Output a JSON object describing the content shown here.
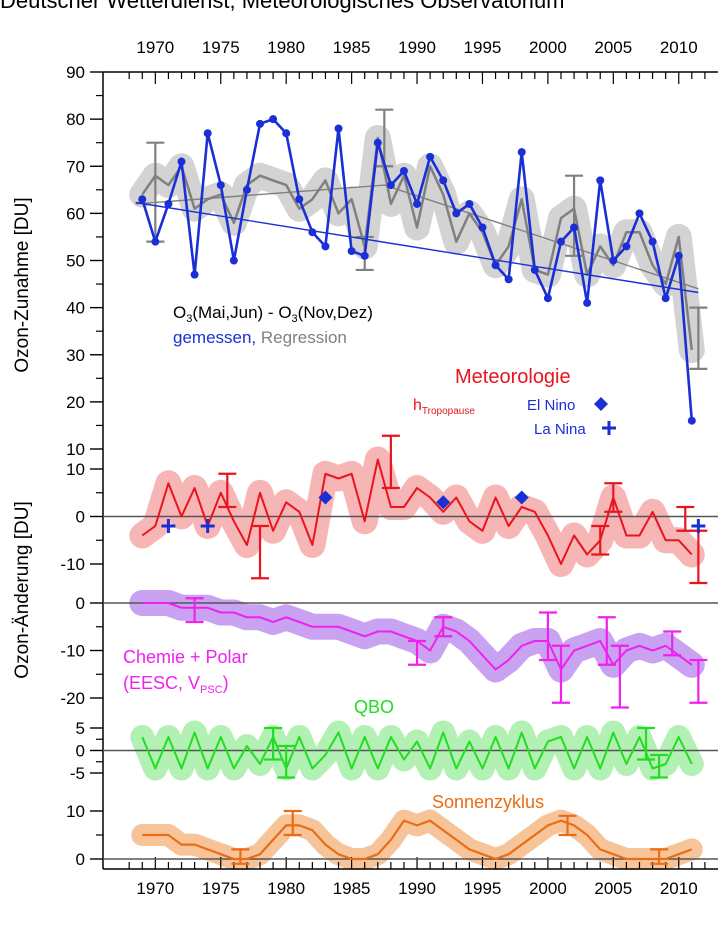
{
  "header_text": "Deutscher Wetterdienst, Meteorologisches Observatorium",
  "y_axis_label_top": "Ozon-Zunahme [DU]",
  "y_axis_label_bottom": "Ozon-Änderung [DU]",
  "colors": {
    "measured": "#1a2fd6",
    "regression": "#808080",
    "regression_band": "#d3d3d3",
    "meteorology": "#e8141e",
    "meteorology_band": "#f7b6b6",
    "chemistry": "#ee22ee",
    "chemistry_band": "#c9a3f2",
    "qbo": "#22dd22",
    "qbo_band": "#b3f0b3",
    "solar": "#ea6c14",
    "solar_band": "#f7c49a",
    "enso": "#1a2fd6",
    "axis": "#000000"
  },
  "chart_data": [
    {
      "type": "line",
      "title": "",
      "ylabel": "Ozon-Zunahme [DU]",
      "xlim": [
        1966,
        2013
      ],
      "ylim": [
        10,
        90
      ],
      "x_ticks": [
        1970,
        1975,
        1980,
        1985,
        1990,
        1995,
        2000,
        2005,
        2010
      ],
      "y_ticks": [
        10,
        20,
        30,
        40,
        50,
        60,
        70,
        80,
        90
      ],
      "annotation": {
        "main": "O",
        "sub": "3",
        "rest_a": "(Mai,Jun) - O",
        "sub2": "3",
        "rest_b": "(Nov,Dez)"
      },
      "legend_measured": "gemessen,",
      "legend_regression": "Regression",
      "x": [
        1969,
        1970,
        1971,
        1972,
        1973,
        1974,
        1975,
        1976,
        1977,
        1978,
        1979,
        1980,
        1981,
        1982,
        1983,
        1984,
        1985,
        1986,
        1987,
        1988,
        1989,
        1990,
        1991,
        1992,
        1993,
        1994,
        1995,
        1996,
        1997,
        1998,
        1999,
        2000,
        2001,
        2002,
        2003,
        2004,
        2005,
        2006,
        2007,
        2008,
        2009,
        2010,
        2011
      ],
      "series": [
        {
          "name": "gemessen",
          "values": [
            63,
            54,
            62,
            71,
            47,
            77,
            66,
            50,
            65,
            79,
            80,
            77,
            63,
            56,
            53,
            78,
            52,
            51,
            75,
            66,
            69,
            62,
            72,
            67,
            60,
            62,
            57,
            49,
            46,
            73,
            48,
            42,
            54,
            57,
            41,
            67,
            50,
            53,
            60,
            54,
            42,
            51,
            16
          ]
        },
        {
          "name": "Regression",
          "values": [
            64,
            68,
            66,
            70,
            61,
            63,
            64,
            58,
            66,
            68,
            67,
            66,
            61,
            63,
            67,
            60,
            63,
            53,
            76,
            62,
            68,
            57,
            70,
            64,
            54,
            60,
            56,
            49,
            53,
            63,
            48,
            47,
            59,
            61,
            47,
            53,
            49,
            56,
            56,
            49,
            45,
            55,
            31
          ]
        }
      ],
      "trend_measured": [
        [
          1968.5,
          62.3
        ],
        [
          2011.5,
          43.2
        ]
      ],
      "trend_regression": [
        [
          1968.5,
          62.0
        ],
        [
          1987.5,
          66.0
        ],
        [
          2011.5,
          44.0
        ]
      ],
      "error_bars": [
        {
          "x": 1970,
          "low": 54,
          "high": 75,
          "series": "Regression"
        },
        {
          "x": 1986,
          "low": 48,
          "high": 55,
          "series": "Regression"
        },
        {
          "x": 1987.5,
          "low": 70,
          "high": 82,
          "series": "Regression"
        },
        {
          "x": 2002,
          "low": 51,
          "high": 68,
          "series": "Regression"
        },
        {
          "x": 2011.5,
          "low": 27,
          "high": 40,
          "series": "Regression"
        }
      ]
    },
    {
      "type": "line",
      "title": "Meteorologie",
      "ylim": [
        -15,
        12
      ],
      "y_ticks": [
        -10,
        0,
        10
      ],
      "legend_tropopause_main": "h",
      "legend_tropopause_sub": "Tropopause",
      "legend_elnino": "El Nino",
      "legend_lanina": "La Nina",
      "x": [
        1969,
        1970,
        1971,
        1972,
        1973,
        1974,
        1975,
        1976,
        1977,
        1978,
        1979,
        1980,
        1981,
        1982,
        1983,
        1984,
        1985,
        1986,
        1987,
        1988,
        1989,
        1990,
        1991,
        1992,
        1993,
        1994,
        1995,
        1996,
        1997,
        1998,
        1999,
        2000,
        2001,
        2002,
        2003,
        2004,
        2005,
        2006,
        2007,
        2008,
        2009,
        2010,
        2011
      ],
      "values": [
        -4,
        -2,
        7,
        0,
        6,
        -2,
        5,
        -1,
        -6,
        5,
        -3,
        3,
        1,
        -6,
        9,
        8,
        9,
        -1,
        12,
        2,
        2,
        6,
        4,
        1,
        4,
        -1,
        -3,
        4,
        -2,
        2,
        1,
        -4,
        -10,
        -4,
        -8,
        -5,
        4,
        -4,
        -4,
        1,
        -5,
        -5,
        -8
      ],
      "error_bars": [
        {
          "x": 1975.5,
          "low": 2,
          "high": 9
        },
        {
          "x": 1978,
          "low": -13,
          "high": -2
        },
        {
          "x": 1988,
          "low": 6,
          "high": 17
        },
        {
          "x": 2004,
          "low": -8,
          "high": -2
        },
        {
          "x": 2005,
          "low": 1,
          "high": 7
        },
        {
          "x": 2010.5,
          "low": -3,
          "high": 2
        },
        {
          "x": 2011.5,
          "low": -14,
          "high": -3
        }
      ],
      "el_nino": [
        [
          1983,
          4
        ],
        [
          1992,
          3
        ],
        [
          1998,
          4
        ]
      ],
      "la_nina": [
        [
          1971,
          -2
        ],
        [
          1974,
          -2
        ],
        [
          2011.5,
          -2
        ]
      ]
    },
    {
      "type": "line",
      "title": "Chemie + Polar",
      "subtitle_main": "(EESC, V",
      "subtitle_sub": "PSC",
      "subtitle_end": ")",
      "ylim": [
        -22,
        2
      ],
      "y_ticks": [
        -20,
        -10,
        0
      ],
      "x": [
        1969,
        1970,
        1971,
        1972,
        1973,
        1974,
        1975,
        1976,
        1977,
        1978,
        1979,
        1980,
        1981,
        1982,
        1983,
        1984,
        1985,
        1986,
        1987,
        1988,
        1989,
        1990,
        1991,
        1992,
        1993,
        1994,
        1995,
        1996,
        1997,
        1998,
        1999,
        2000,
        2001,
        2002,
        2003,
        2004,
        2005,
        2006,
        2007,
        2008,
        2009,
        2010,
        2011
      ],
      "values": [
        0,
        0,
        0,
        -1,
        -1,
        -1,
        -2,
        -2,
        -3,
        -3,
        -4,
        -3,
        -4,
        -5,
        -5,
        -5,
        -6,
        -7,
        -6,
        -6,
        -7,
        -8,
        -10,
        -5,
        -6,
        -8,
        -11,
        -14,
        -12,
        -9,
        -8,
        -8,
        -14,
        -10,
        -9,
        -8,
        -13,
        -10,
        -9,
        -10,
        -9,
        -11,
        -13
      ],
      "error_bars": [
        {
          "x": 1973,
          "low": -4,
          "high": 1
        },
        {
          "x": 1990,
          "low": -13,
          "high": -8
        },
        {
          "x": 1992,
          "low": -7,
          "high": -3
        },
        {
          "x": 2000,
          "low": -12,
          "high": -2
        },
        {
          "x": 2001,
          "low": -21,
          "high": -9
        },
        {
          "x": 2004.5,
          "low": -13,
          "high": -3
        },
        {
          "x": 2005.5,
          "low": -22,
          "high": -9
        },
        {
          "x": 2009.5,
          "low": -11,
          "high": -6
        },
        {
          "x": 2011.5,
          "low": -21,
          "high": -12
        }
      ]
    },
    {
      "type": "line",
      "title": "QBO",
      "ylim": [
        -6,
        6
      ],
      "y_ticks": [
        -5,
        0,
        5
      ],
      "x": [
        1969,
        1970,
        1971,
        1972,
        1973,
        1974,
        1975,
        1976,
        1977,
        1978,
        1979,
        1980,
        1981,
        1982,
        1983,
        1984,
        1985,
        1986,
        1987,
        1988,
        1989,
        1990,
        1991,
        1992,
        1993,
        1994,
        1995,
        1996,
        1997,
        1998,
        1999,
        2000,
        2001,
        2002,
        2003,
        2004,
        2005,
        2006,
        2007,
        2008,
        2009,
        2010,
        2011
      ],
      "values": [
        3,
        -4,
        3,
        -4,
        4,
        -4,
        3,
        -4,
        1,
        -3,
        3,
        -4,
        3,
        -4,
        -1,
        4,
        -4,
        3,
        -4,
        3,
        -2,
        2,
        -4,
        4,
        -4,
        2,
        -4,
        3,
        -4,
        4,
        -4,
        2,
        3,
        -4,
        3,
        -4,
        4,
        -3,
        3,
        -4,
        -3,
        3,
        -3
      ],
      "error_bars": [
        {
          "x": 1979,
          "low": -2,
          "high": 5
        },
        {
          "x": 1980,
          "low": -6,
          "high": 1
        },
        {
          "x": 2007.5,
          "low": -2,
          "high": 5
        },
        {
          "x": 2008.5,
          "low": -6,
          "high": -1
        }
      ]
    },
    {
      "type": "line",
      "title": "Sonnenzyklus",
      "ylim": [
        -1,
        13
      ],
      "y_ticks": [
        0,
        10
      ],
      "x": [
        1969,
        1970,
        1971,
        1972,
        1973,
        1974,
        1975,
        1976,
        1977,
        1978,
        1979,
        1980,
        1981,
        1982,
        1983,
        1984,
        1985,
        1986,
        1987,
        1988,
        1989,
        1990,
        1991,
        1992,
        1993,
        1994,
        1995,
        1996,
        1997,
        1998,
        1999,
        2000,
        2001,
        2002,
        2003,
        2004,
        2005,
        2006,
        2007,
        2008,
        2009,
        2010,
        2011
      ],
      "values": [
        5,
        5,
        5,
        3,
        3,
        2,
        1,
        0,
        0,
        1,
        4,
        7,
        7,
        6,
        3,
        1,
        0,
        0,
        1,
        4,
        8,
        7,
        8,
        6,
        4,
        2,
        1,
        0,
        1,
        3,
        5,
        7,
        8,
        7,
        5,
        2,
        1,
        0,
        0,
        0,
        0,
        1,
        2
      ],
      "error_bars": [
        {
          "x": 1976.5,
          "low": -1,
          "high": 2
        },
        {
          "x": 1980.5,
          "low": 5,
          "high": 10
        },
        {
          "x": 2001.5,
          "low": 5,
          "high": 9
        },
        {
          "x": 2008.5,
          "low": -1,
          "high": 2
        }
      ]
    }
  ]
}
